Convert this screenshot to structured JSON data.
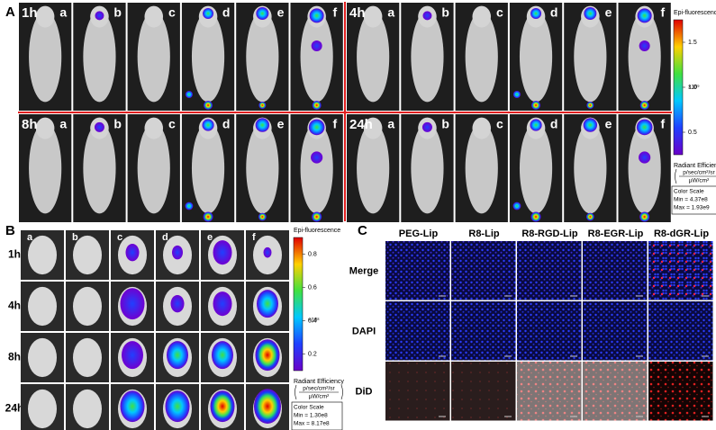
{
  "panel_a": {
    "label": "A",
    "time_points": [
      "1h",
      "4h",
      "8h",
      "24h"
    ],
    "groups": [
      "a",
      "b",
      "c",
      "d",
      "e",
      "f"
    ],
    "colorbar": {
      "title": "Epi-fluorescence",
      "ticks": [
        "1.5",
        "1.0",
        "0.5"
      ],
      "multiplier": "×10⁹",
      "quantity": "Radiant Efficiency",
      "unit_numerator": "p/sec/cm²/sr",
      "unit_denominator": "µW/cm²",
      "scale_title": "Color Scale",
      "min": "Min = 4.37e8",
      "max": "Max = 1.93e9"
    }
  },
  "panel_b": {
    "label": "B",
    "time_points": [
      "1h",
      "4h",
      "8h",
      "24h"
    ],
    "groups": [
      "a",
      "b",
      "c",
      "d",
      "e",
      "f"
    ],
    "colorbar": {
      "title": "Epi-fluorescence",
      "ticks": [
        "0.8",
        "0.6",
        "0.4",
        "0.2"
      ],
      "multiplier": "×10⁸",
      "quantity": "Radiant Efficiency",
      "unit_numerator": "p/sec/cm²/sr",
      "unit_denominator": "µW/cm²",
      "scale_title": "Color Scale",
      "min": "Min = 1.30e8",
      "max": "Max = 8.17e8"
    }
  },
  "panel_c": {
    "label": "C",
    "columns": [
      "PEG-Lip",
      "R8-Lip",
      "R8-RGD-Lip",
      "R8-EGR-Lip",
      "R8-dGR-Lip"
    ],
    "rows": [
      "Merge",
      "DAPI",
      "DiD"
    ]
  }
}
